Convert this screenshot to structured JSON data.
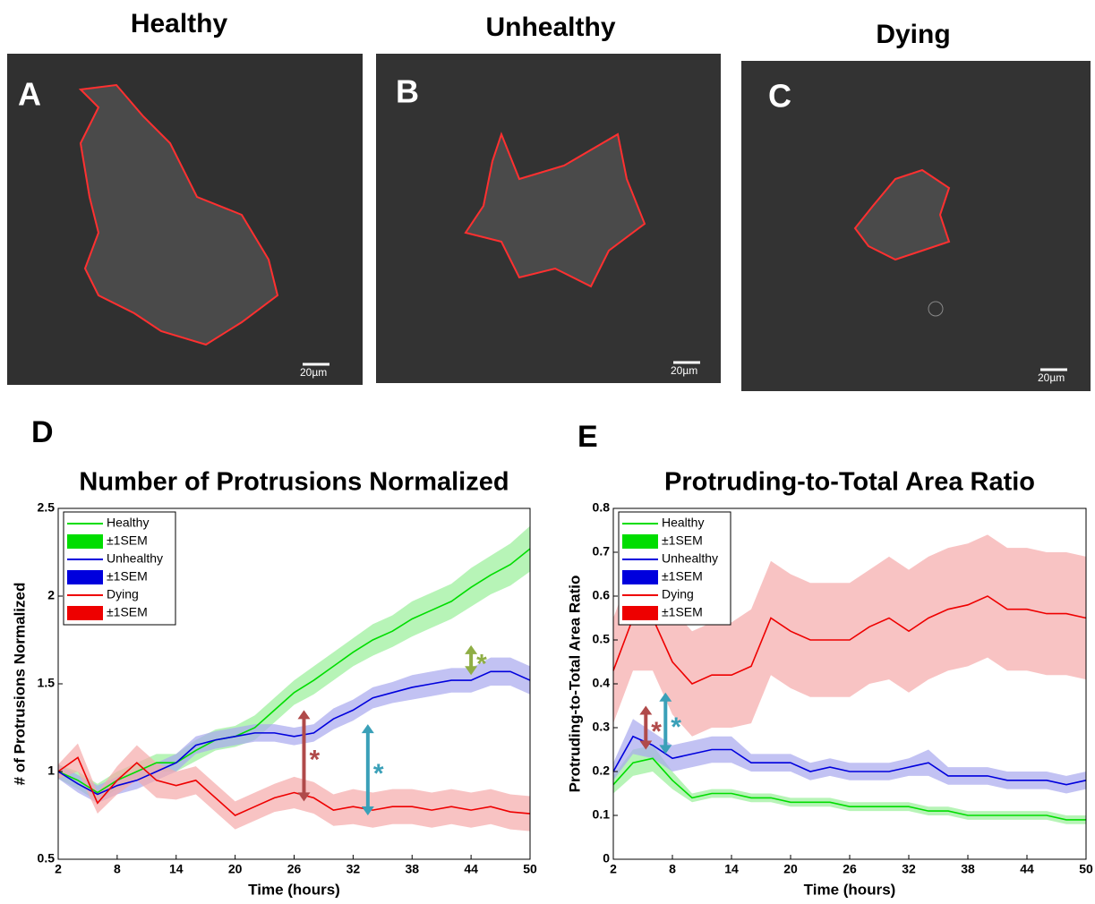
{
  "images": [
    {
      "title": "Healthy",
      "letter": "A",
      "scale": "20µm"
    },
    {
      "title": "Unhealthy",
      "letter": "B",
      "scale": "20µm"
    },
    {
      "title": "Dying",
      "letter": "C",
      "scale": "20µm"
    }
  ],
  "chart_data": [
    {
      "type": "line",
      "panel": "D",
      "title": "Number of Protrusions Normalized",
      "xlabel": "Time (hours)",
      "ylabel": "# of Protrusions Normalized",
      "x": [
        2,
        4,
        6,
        8,
        10,
        12,
        14,
        16,
        18,
        20,
        22,
        24,
        26,
        28,
        30,
        32,
        34,
        36,
        38,
        40,
        42,
        44,
        46,
        48,
        50
      ],
      "xlim": [
        2,
        50
      ],
      "xticks": [
        2,
        8,
        14,
        20,
        26,
        32,
        38,
        44,
        50
      ],
      "ylim": [
        0.5,
        2.5
      ],
      "yticks": [
        0.5,
        1,
        1.5,
        2,
        2.5
      ],
      "legend": "upper left",
      "series": [
        {
          "name": "Healthy",
          "color": "#00dd00",
          "sem_name": "±1SEM",
          "sem_color": "#99f099",
          "values": [
            1.0,
            0.95,
            0.88,
            0.95,
            1.0,
            1.05,
            1.05,
            1.12,
            1.18,
            1.2,
            1.25,
            1.35,
            1.45,
            1.52,
            1.6,
            1.68,
            1.75,
            1.8,
            1.87,
            1.92,
            1.97,
            2.05,
            2.12,
            2.18,
            2.27
          ],
          "sem": [
            0.04,
            0.05,
            0.05,
            0.05,
            0.05,
            0.05,
            0.05,
            0.06,
            0.06,
            0.06,
            0.07,
            0.07,
            0.07,
            0.08,
            0.08,
            0.08,
            0.09,
            0.09,
            0.1,
            0.1,
            0.1,
            0.11,
            0.11,
            0.12,
            0.13
          ]
        },
        {
          "name": "Unhealthy",
          "color": "#0000dd",
          "sem_name": "±1SEM",
          "sem_color": "#a8a8ee",
          "values": [
            1.0,
            0.93,
            0.87,
            0.92,
            0.95,
            1.0,
            1.05,
            1.15,
            1.18,
            1.2,
            1.22,
            1.22,
            1.2,
            1.22,
            1.3,
            1.35,
            1.42,
            1.45,
            1.48,
            1.5,
            1.52,
            1.52,
            1.57,
            1.57,
            1.52
          ],
          "sem": [
            0.04,
            0.05,
            0.05,
            0.05,
            0.05,
            0.05,
            0.05,
            0.05,
            0.05,
            0.05,
            0.05,
            0.05,
            0.05,
            0.05,
            0.06,
            0.06,
            0.06,
            0.06,
            0.07,
            0.07,
            0.07,
            0.07,
            0.08,
            0.08,
            0.08
          ]
        },
        {
          "name": "Dying",
          "color": "#ee0000",
          "sem_name": "±1SEM",
          "sem_color": "#f5aaaa",
          "values": [
            1.0,
            1.08,
            0.82,
            0.95,
            1.05,
            0.95,
            0.92,
            0.95,
            0.85,
            0.75,
            0.8,
            0.85,
            0.88,
            0.85,
            0.78,
            0.8,
            0.78,
            0.8,
            0.8,
            0.78,
            0.8,
            0.78,
            0.8,
            0.77,
            0.76
          ],
          "sem": [
            0.04,
            0.08,
            0.06,
            0.08,
            0.1,
            0.1,
            0.08,
            0.08,
            0.08,
            0.08,
            0.08,
            0.08,
            0.09,
            0.09,
            0.09,
            0.1,
            0.1,
            0.1,
            0.1,
            0.1,
            0.1,
            0.1,
            0.1,
            0.1,
            0.1
          ]
        }
      ],
      "annotations": [
        {
          "text": "*",
          "color": "#b04a4a",
          "x": 27,
          "y": [
            0.83,
            1.35
          ]
        },
        {
          "text": "*",
          "color": "#3aa0b8",
          "x": 33.5,
          "y": [
            0.75,
            1.27
          ]
        },
        {
          "text": "*",
          "color": "#8fae45",
          "x": 44,
          "y": [
            1.55,
            1.72
          ]
        }
      ]
    },
    {
      "type": "line",
      "panel": "E",
      "title": "Protruding-to-Total Area Ratio",
      "xlabel": "Time (hours)",
      "ylabel": "Protruding-to-Total Area Ratio",
      "x": [
        2,
        4,
        6,
        8,
        10,
        12,
        14,
        16,
        18,
        20,
        22,
        24,
        26,
        28,
        30,
        32,
        34,
        36,
        38,
        40,
        42,
        44,
        46,
        48,
        50
      ],
      "xlim": [
        2,
        50
      ],
      "xticks": [
        2,
        8,
        14,
        20,
        26,
        32,
        38,
        44,
        50
      ],
      "ylim": [
        0,
        0.8
      ],
      "yticks": [
        0,
        0.1,
        0.2,
        0.3,
        0.4,
        0.5,
        0.6,
        0.7,
        0.8
      ],
      "legend": "upper left",
      "series": [
        {
          "name": "Healthy",
          "color": "#00dd00",
          "sem_name": "±1SEM",
          "sem_color": "#99f099",
          "values": [
            0.17,
            0.22,
            0.23,
            0.18,
            0.14,
            0.15,
            0.15,
            0.14,
            0.14,
            0.13,
            0.13,
            0.13,
            0.12,
            0.12,
            0.12,
            0.12,
            0.11,
            0.11,
            0.1,
            0.1,
            0.1,
            0.1,
            0.1,
            0.09,
            0.09
          ],
          "sem": [
            0.02,
            0.03,
            0.03,
            0.02,
            0.01,
            0.01,
            0.01,
            0.01,
            0.01,
            0.01,
            0.01,
            0.01,
            0.01,
            0.01,
            0.01,
            0.01,
            0.01,
            0.01,
            0.01,
            0.01,
            0.01,
            0.01,
            0.01,
            0.01,
            0.01
          ]
        },
        {
          "name": "Unhealthy",
          "color": "#0000dd",
          "sem_name": "±1SEM",
          "sem_color": "#a8a8ee",
          "values": [
            0.2,
            0.28,
            0.26,
            0.23,
            0.24,
            0.25,
            0.25,
            0.22,
            0.22,
            0.22,
            0.2,
            0.21,
            0.2,
            0.2,
            0.2,
            0.21,
            0.22,
            0.19,
            0.19,
            0.19,
            0.18,
            0.18,
            0.18,
            0.17,
            0.18
          ],
          "sem": [
            0.02,
            0.04,
            0.03,
            0.03,
            0.03,
            0.03,
            0.03,
            0.02,
            0.02,
            0.02,
            0.02,
            0.02,
            0.02,
            0.02,
            0.02,
            0.02,
            0.03,
            0.02,
            0.02,
            0.02,
            0.02,
            0.02,
            0.02,
            0.02,
            0.02
          ]
        },
        {
          "name": "Dying",
          "color": "#ee0000",
          "sem_name": "±1SEM",
          "sem_color": "#f5aaaa",
          "values": [
            0.43,
            0.55,
            0.55,
            0.45,
            0.4,
            0.42,
            0.42,
            0.44,
            0.55,
            0.52,
            0.5,
            0.5,
            0.5,
            0.53,
            0.55,
            0.52,
            0.55,
            0.57,
            0.58,
            0.6,
            0.57,
            0.57,
            0.56,
            0.56,
            0.55
          ],
          "sem": [
            0.12,
            0.12,
            0.12,
            0.12,
            0.12,
            0.12,
            0.12,
            0.13,
            0.13,
            0.13,
            0.13,
            0.13,
            0.13,
            0.13,
            0.14,
            0.14,
            0.14,
            0.14,
            0.14,
            0.14,
            0.14,
            0.14,
            0.14,
            0.14,
            0.14
          ]
        }
      ],
      "annotations": [
        {
          "text": "*",
          "color": "#b04a4a",
          "x": 5.3,
          "y": [
            0.25,
            0.35
          ]
        },
        {
          "text": "*",
          "color": "#3aa0b8",
          "x": 7.3,
          "y": [
            0.24,
            0.38
          ]
        }
      ]
    }
  ]
}
